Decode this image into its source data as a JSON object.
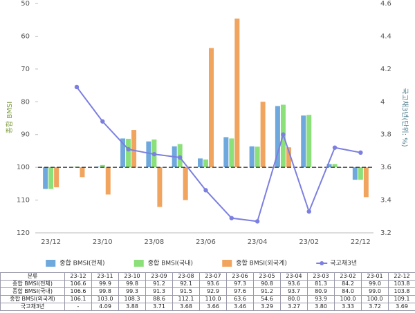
{
  "chart_data": {
    "type": "bar_line",
    "categories": [
      "23/12",
      null,
      "23/10",
      null,
      "23/08",
      null,
      "23/06",
      null,
      "23/04",
      null,
      "23/02",
      null,
      "22/12"
    ],
    "series": [
      {
        "name": "종합 BMSI(전체)",
        "color": "#6fa8dc",
        "values": [
          106.6,
          99.9,
          99.8,
          91.2,
          92.1,
          93.6,
          97.3,
          90.8,
          93.6,
          81.3,
          84.2,
          99.0,
          103.8
        ]
      },
      {
        "name": "종합 BMSI(국내)",
        "color": "#8be07a",
        "values": [
          106.6,
          99.8,
          99.3,
          91.3,
          91.5,
          92.9,
          97.6,
          91.2,
          93.7,
          80.9,
          84.0,
          99.0,
          103.8
        ]
      },
      {
        "name": "종합 BMSI(외국계)",
        "color": "#f0a45e",
        "values": [
          106.1,
          103.0,
          108.3,
          88.6,
          112.1,
          110.0,
          63.6,
          54.6,
          80.0,
          93.9,
          100.0,
          100.0,
          109.1
        ]
      },
      {
        "name": "국고채3년",
        "color": "#7b7fe0",
        "axis": "y2",
        "type": "line",
        "values": [
          null,
          4.09,
          3.88,
          3.71,
          3.68,
          3.66,
          3.46,
          3.29,
          3.27,
          3.8,
          3.33,
          3.72,
          3.69
        ]
      }
    ],
    "ylabel": "종합 BMSI",
    "y2label": "국고채3년(단위: %)",
    "ylim": [
      50,
      120
    ],
    "y_reversed": true,
    "yticks": [
      50,
      60,
      70,
      80,
      90,
      100,
      110,
      120
    ],
    "y2lim": [
      3.2,
      4.6
    ],
    "y2ticks": [
      3.2,
      3.4,
      3.6,
      3.8,
      4,
      4.2,
      4.4,
      4.6
    ],
    "baseline": 100,
    "legend": "bottom"
  },
  "table": {
    "header": [
      "분류",
      "23-12",
      "23-11",
      "23-10",
      "23-09",
      "23-08",
      "23-07",
      "23-06",
      "23-05",
      "23-04",
      "23-03",
      "23-02",
      "23-01",
      "22-12"
    ],
    "rows": [
      [
        "종합 BMSI(전체)",
        "106.6",
        "99.9",
        "99.8",
        "91.2",
        "92.1",
        "93.6",
        "97.3",
        "90.8",
        "93.6",
        "81.3",
        "84.2",
        "99.0",
        "103.8"
      ],
      [
        "종합 BMSI(국내)",
        "106.6",
        "99.8",
        "99.3",
        "91.3",
        "91.5",
        "92.9",
        "97.6",
        "91.2",
        "93.7",
        "80.9",
        "84.0",
        "99.0",
        "103.8"
      ],
      [
        "종합 BMSI(외국계)",
        "106.1",
        "103.0",
        "108.3",
        "88.6",
        "112.1",
        "110.0",
        "63.6",
        "54.6",
        "80.0",
        "93.9",
        "100.0",
        "100.0",
        "109.1"
      ],
      [
        "국고채3년",
        "-",
        "4.09",
        "3.88",
        "3.71",
        "3.68",
        "3.66",
        "3.46",
        "3.29",
        "3.27",
        "3.80",
        "3.33",
        "3.72",
        "3.69"
      ]
    ]
  }
}
